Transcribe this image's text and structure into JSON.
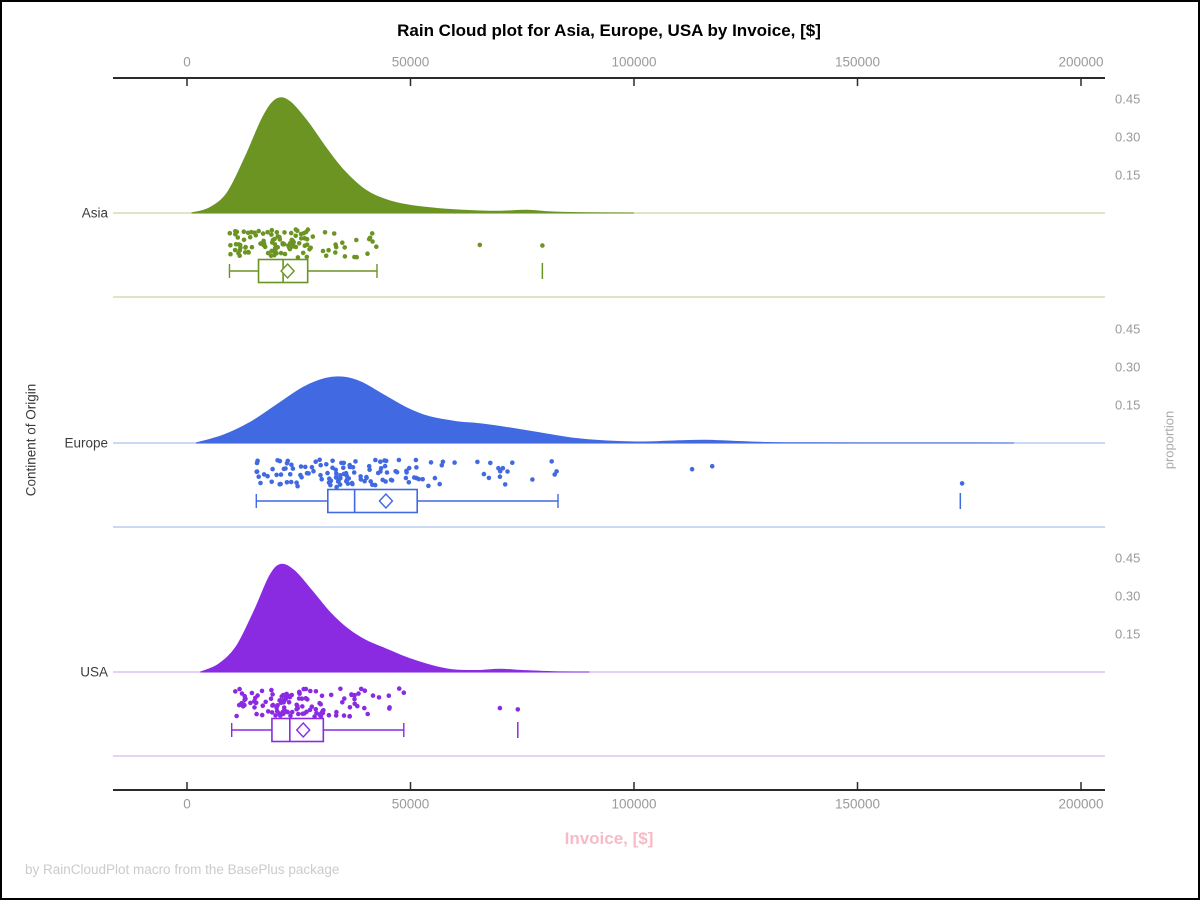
{
  "title": "Rain Cloud plot for Asia, Europe, USA by Invoice, [$]",
  "footer": "by RainCloudPlot macro from the BasePlus package",
  "x_axis": {
    "label": "Invoice, [$]",
    "label_color": "#F8BAC6",
    "ticks": [
      0,
      50000,
      100000,
      150000,
      200000
    ],
    "tick_labels": [
      "0",
      "50000",
      "100000",
      "150000",
      "200000"
    ]
  },
  "y_axis_left": {
    "label": "Continent of Origin",
    "categories": [
      "Asia",
      "Europe",
      "USA"
    ]
  },
  "y_axis_right": {
    "label": "proportion",
    "ticks": [
      0.45,
      0.3,
      0.15
    ],
    "tick_labels": [
      "0.45",
      "0.30",
      "0.15"
    ]
  },
  "chart_data": {
    "type": "raincloud (half-violin density + jittered strip + box plot)",
    "x_range": [
      0,
      205000
    ],
    "proportion_axis_ticks": [
      0.15,
      0.3,
      0.45
    ],
    "legend": "none",
    "grid": "off",
    "series": [
      {
        "name": "Asia",
        "color": "#6B9423",
        "light_color": "#C9D6A3",
        "density": [
          [
            1000,
            0
          ],
          [
            5000,
            0.02
          ],
          [
            9000,
            0.08
          ],
          [
            13000,
            0.22
          ],
          [
            17000,
            0.38
          ],
          [
            20000,
            0.45
          ],
          [
            23000,
            0.44
          ],
          [
            27000,
            0.36
          ],
          [
            31000,
            0.26
          ],
          [
            35000,
            0.17
          ],
          [
            40000,
            0.09
          ],
          [
            45000,
            0.05
          ],
          [
            50000,
            0.03
          ],
          [
            56000,
            0.018
          ],
          [
            63000,
            0.01
          ],
          [
            70000,
            0.007
          ],
          [
            76000,
            0.011
          ],
          [
            82000,
            0.004
          ],
          [
            90000,
            0.001
          ],
          [
            100000,
            0
          ]
        ],
        "box": {
          "min": 9500,
          "q1": 16000,
          "median": 21500,
          "mean": 22500,
          "q3": 27000,
          "max": 42500,
          "outliers": [
            79500
          ]
        },
        "rain": {
          "count": 115,
          "seed": 11,
          "far_points": [
            65500,
            79500
          ]
        }
      },
      {
        "name": "Europe",
        "color": "#4169E1",
        "light_color": "#AEC2EE",
        "density": [
          [
            2000,
            0
          ],
          [
            8000,
            0.03
          ],
          [
            14000,
            0.08
          ],
          [
            20000,
            0.15
          ],
          [
            26000,
            0.22
          ],
          [
            31000,
            0.255
          ],
          [
            35000,
            0.26
          ],
          [
            39000,
            0.24
          ],
          [
            44000,
            0.19
          ],
          [
            49000,
            0.14
          ],
          [
            54000,
            0.105
          ],
          [
            60000,
            0.085
          ],
          [
            66000,
            0.075
          ],
          [
            72000,
            0.06
          ],
          [
            79000,
            0.04
          ],
          [
            86000,
            0.02
          ],
          [
            94000,
            0.008
          ],
          [
            102000,
            0.004
          ],
          [
            110000,
            0.009
          ],
          [
            116000,
            0.011
          ],
          [
            122000,
            0.007
          ],
          [
            130000,
            0.002
          ],
          [
            140000,
            0.001
          ],
          [
            160000,
            0.0005
          ],
          [
            175000,
            0.0005
          ],
          [
            185000,
            0
          ]
        ],
        "box": {
          "min": 15500,
          "q1": 31500,
          "median": 37500,
          "mean": 44500,
          "q3": 51500,
          "max": 83000,
          "outliers": [
            173000
          ]
        },
        "rain": {
          "count": 135,
          "seed": 22,
          "far_points": [
            113000,
            117500,
            173400
          ]
        }
      },
      {
        "name": "USA",
        "color": "#8A2BE2",
        "light_color": "#D7B8F0",
        "density": [
          [
            3000,
            0
          ],
          [
            7000,
            0.03
          ],
          [
            11000,
            0.1
          ],
          [
            15000,
            0.24
          ],
          [
            18500,
            0.38
          ],
          [
            21000,
            0.425
          ],
          [
            24000,
            0.4
          ],
          [
            28000,
            0.32
          ],
          [
            32000,
            0.235
          ],
          [
            36000,
            0.17
          ],
          [
            40000,
            0.125
          ],
          [
            44000,
            0.095
          ],
          [
            48000,
            0.065
          ],
          [
            52000,
            0.04
          ],
          [
            56000,
            0.02
          ],
          [
            60000,
            0.008
          ],
          [
            65000,
            0.006
          ],
          [
            70000,
            0.011
          ],
          [
            75000,
            0.006
          ],
          [
            82000,
            0.001
          ],
          [
            90000,
            0
          ]
        ],
        "box": {
          "min": 10000,
          "q1": 19000,
          "median": 23000,
          "mean": 26000,
          "q3": 30500,
          "max": 48500,
          "outliers": [
            74000
          ]
        },
        "rain": {
          "count": 125,
          "seed": 33,
          "far_points": [
            70000,
            74000
          ]
        }
      }
    ]
  }
}
